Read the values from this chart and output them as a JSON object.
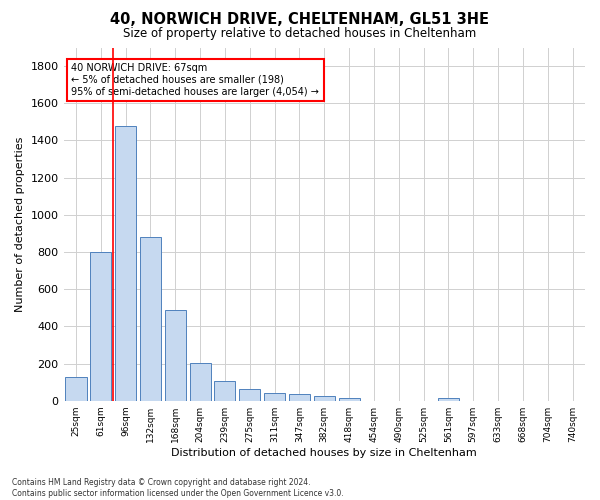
{
  "title": "40, NORWICH DRIVE, CHELTENHAM, GL51 3HE",
  "subtitle": "Size of property relative to detached houses in Cheltenham",
  "xlabel": "Distribution of detached houses by size in Cheltenham",
  "ylabel": "Number of detached properties",
  "bar_values": [
    125,
    800,
    1480,
    880,
    490,
    205,
    105,
    65,
    40,
    35,
    25,
    15,
    0,
    0,
    0,
    15,
    0,
    0,
    0,
    0,
    0
  ],
  "categories": [
    "25sqm",
    "61sqm",
    "96sqm",
    "132sqm",
    "168sqm",
    "204sqm",
    "239sqm",
    "275sqm",
    "311sqm",
    "347sqm",
    "382sqm",
    "418sqm",
    "454sqm",
    "490sqm",
    "525sqm",
    "561sqm",
    "597sqm",
    "633sqm",
    "668sqm",
    "704sqm",
    "740sqm"
  ],
  "bar_color": "#c6d9f0",
  "bar_edgecolor": "#4f81bd",
  "grid_color": "#d0d0d0",
  "vline_x": 1.5,
  "vline_color": "red",
  "annotation_text": "40 NORWICH DRIVE: 67sqm\n← 5% of detached houses are smaller (198)\n95% of semi-detached houses are larger (4,054) →",
  "annotation_box_color": "red",
  "ylim": [
    0,
    1900
  ],
  "yticks": [
    0,
    200,
    400,
    600,
    800,
    1000,
    1200,
    1400,
    1600,
    1800
  ],
  "footer": "Contains HM Land Registry data © Crown copyright and database right 2024.\nContains public sector information licensed under the Open Government Licence v3.0.",
  "bg_color": "#ffffff",
  "title_fontsize": 10.5,
  "subtitle_fontsize": 8.5,
  "ylabel_fontsize": 8,
  "xlabel_fontsize": 8,
  "ytick_fontsize": 8,
  "xtick_fontsize": 6.5,
  "annotation_fontsize": 7,
  "footer_fontsize": 5.5
}
